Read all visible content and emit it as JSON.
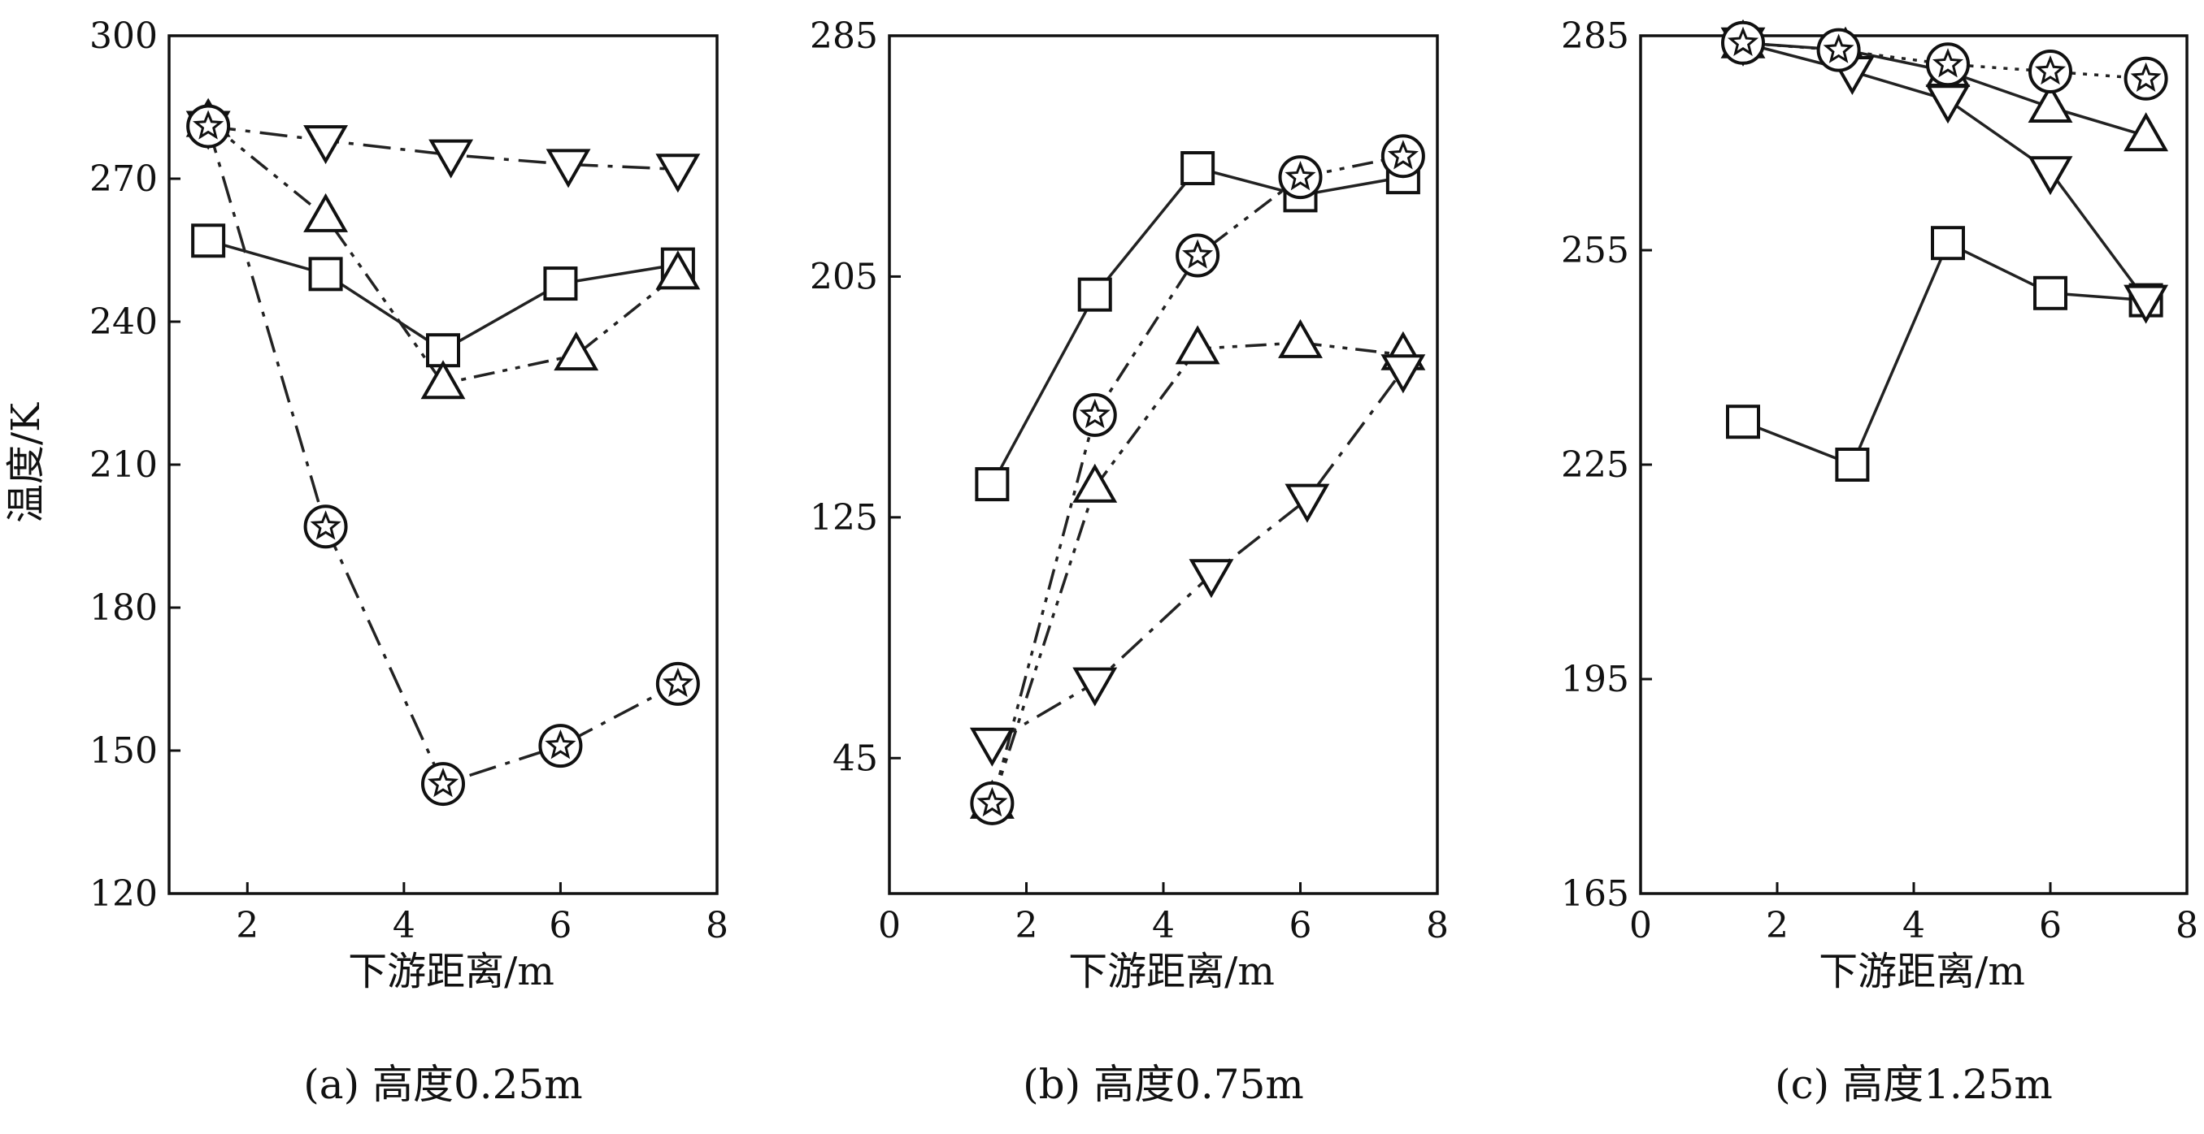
{
  "y_axis_title": "温度/K",
  "chart_data": [
    {
      "type": "line",
      "caption": "(a) 高度0.25m",
      "xlabel": "下游距离/m",
      "xlim": [
        1,
        8
      ],
      "ylim": [
        120,
        300
      ],
      "xticks": [
        2,
        4,
        6,
        8
      ],
      "yticks": [
        120,
        150,
        180,
        210,
        240,
        270,
        300
      ],
      "series": [
        {
          "marker": "square",
          "line": "solid",
          "x": [
            1.5,
            3.0,
            4.5,
            6.0,
            7.5
          ],
          "y": [
            257,
            250,
            234,
            248,
            252
          ]
        },
        {
          "marker": "triangle-up",
          "line": "dashdotdot",
          "x": [
            1.5,
            3.0,
            4.5,
            6.2,
            7.5
          ],
          "y": [
            282,
            262,
            227,
            233,
            250
          ]
        },
        {
          "marker": "triangle-down",
          "line": "dashdot",
          "x": [
            1.5,
            3.0,
            4.6,
            6.1,
            7.5
          ],
          "y": [
            281,
            278,
            275,
            273,
            272
          ]
        },
        {
          "marker": "star-circle",
          "line": "dashdot",
          "x": [
            1.5,
            3.0,
            4.5,
            6.0,
            7.5
          ],
          "y": [
            281,
            197,
            143,
            151,
            164
          ]
        }
      ]
    },
    {
      "type": "line",
      "caption": "(b) 高度0.75m",
      "xlabel": "下游距离/m",
      "xlim": [
        0,
        8
      ],
      "ylim": [
        0,
        285
      ],
      "xticks": [
        0,
        2,
        4,
        6,
        8
      ],
      "yticks": [
        45,
        125,
        205,
        285
      ],
      "series": [
        {
          "marker": "square",
          "line": "solid",
          "x": [
            1.5,
            3.0,
            4.5,
            6.0,
            7.5
          ],
          "y": [
            136,
            199,
            241,
            232,
            238
          ]
        },
        {
          "marker": "triangle-up",
          "line": "dashdotdot",
          "x": [
            1.5,
            3.0,
            4.5,
            6.0,
            7.5
          ],
          "y": [
            30,
            135,
            181,
            183,
            179
          ]
        },
        {
          "marker": "triangle-down",
          "line": "dashdot",
          "x": [
            1.5,
            3.0,
            4.7,
            6.1,
            7.5
          ],
          "y": [
            50,
            70,
            106,
            131,
            174
          ]
        },
        {
          "marker": "star-circle",
          "line": "dashdotdot",
          "x": [
            1.5,
            3.0,
            4.5,
            6.0,
            7.5
          ],
          "y": [
            30,
            159,
            212,
            238,
            245
          ]
        }
      ]
    },
    {
      "type": "line",
      "caption": "(c) 高度1.25m",
      "xlabel": "下游距离/m",
      "xlim": [
        0,
        8
      ],
      "ylim": [
        165,
        285
      ],
      "xticks": [
        0,
        2,
        4,
        6,
        8
      ],
      "yticks": [
        165,
        195,
        225,
        255,
        285
      ],
      "series": [
        {
          "marker": "square",
          "line": "solid",
          "x": [
            1.5,
            3.1,
            4.5,
            6.0,
            7.4
          ],
          "y": [
            231,
            225,
            256,
            249,
            248
          ]
        },
        {
          "marker": "triangle-up",
          "line": "solid",
          "x": [
            1.5,
            3.0,
            4.5,
            6.0,
            7.4
          ],
          "y": [
            284,
            283,
            280,
            275,
            271
          ]
        },
        {
          "marker": "triangle-down",
          "line": "solid",
          "x": [
            1.5,
            3.1,
            4.5,
            6.0,
            7.4
          ],
          "y": [
            284,
            280,
            276,
            266,
            248
          ]
        },
        {
          "marker": "star-circle",
          "line": "dotted",
          "x": [
            1.5,
            2.9,
            4.5,
            6.0,
            7.4
          ],
          "y": [
            284,
            283,
            281,
            280,
            279
          ]
        }
      ]
    }
  ]
}
